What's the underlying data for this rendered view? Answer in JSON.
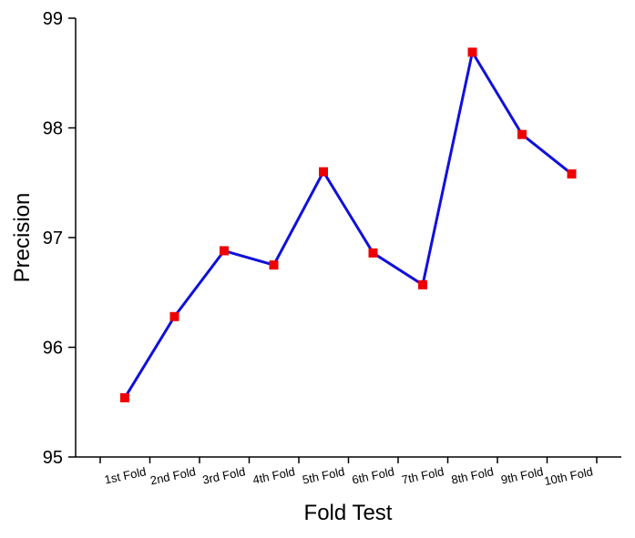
{
  "chart_data": {
    "type": "line",
    "title": "",
    "xlabel": "Fold Test",
    "ylabel": "Precision",
    "categories": [
      "1st Fold",
      "2nd Fold",
      "3rd Fold",
      "4th Fold",
      "5th Fold",
      "6th Fold",
      "7th Fold",
      "8th Fold",
      "9th Fold",
      "10th Fold"
    ],
    "series": [
      {
        "values": [
          95.54,
          96.28,
          96.88,
          96.75,
          97.6,
          96.86,
          96.57,
          98.69,
          97.94,
          97.58
        ],
        "line_color": "#1010dd",
        "marker_color": "#ee0000",
        "marker": "square"
      }
    ],
    "ylim": [
      95,
      99
    ],
    "yticks": [
      "95",
      "96",
      "97",
      "98",
      "99"
    ],
    "grid": false,
    "legend": "none"
  }
}
